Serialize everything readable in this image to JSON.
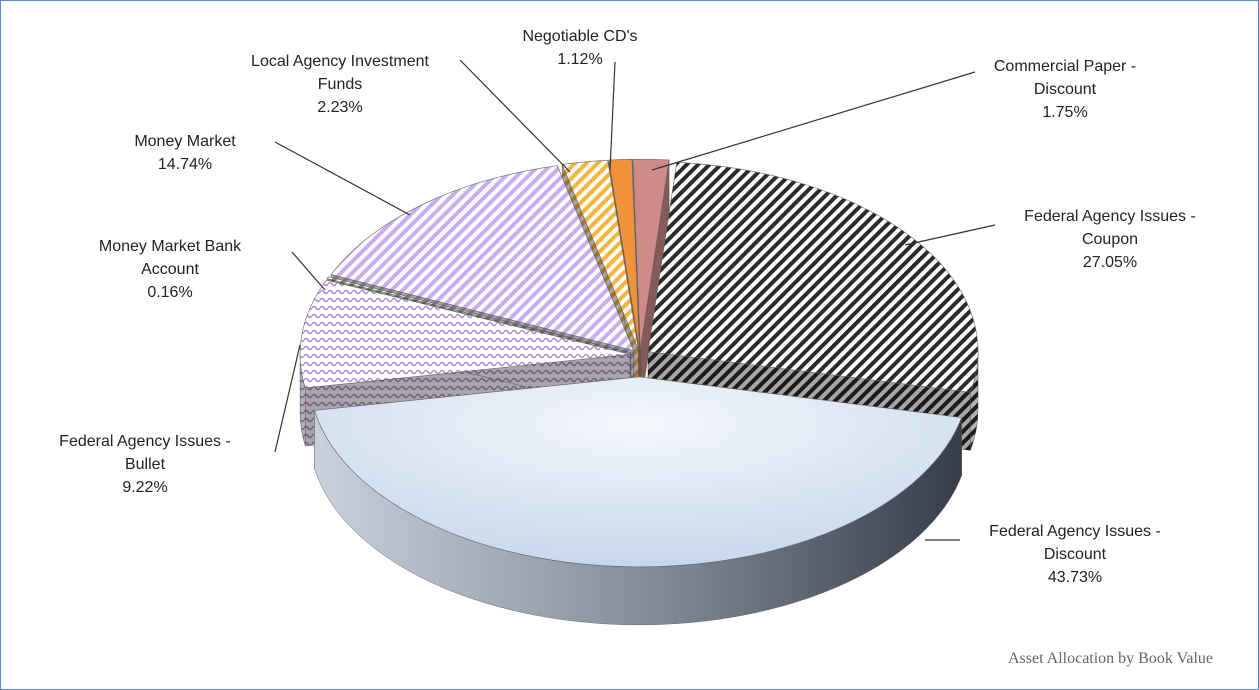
{
  "chart_data": {
    "type": "pie",
    "title": "Asset Allocation by Book Value",
    "categories": [
      "Federal Agency Issues - Coupon",
      "Federal Agency Issues - Discount",
      "Federal Agency Issues - Bullet",
      "Money Market Bank Account",
      "Money Market",
      "Local Agency Investment Funds",
      "Negotiable CD's",
      "Commercial Paper - Discount"
    ],
    "values": [
      27.05,
      43.73,
      9.22,
      0.16,
      14.74,
      2.23,
      1.12,
      1.75
    ],
    "value_labels": [
      "27.05%",
      "43.73%",
      "9.22%",
      "0.16%",
      "14.74%",
      "2.23%",
      "1.12%",
      "1.75%"
    ],
    "colors": [
      "#2b2b2b",
      "#c4d5ea",
      "#b58fdc",
      "#7a9a5a",
      "#c8aef0",
      "#f5b43c",
      "#f0923a",
      "#d08a8a"
    ],
    "patterns": [
      "stripes",
      "solid",
      "waves",
      "stripes",
      "stripes",
      "stripes",
      "solid",
      "solid"
    ]
  }
}
